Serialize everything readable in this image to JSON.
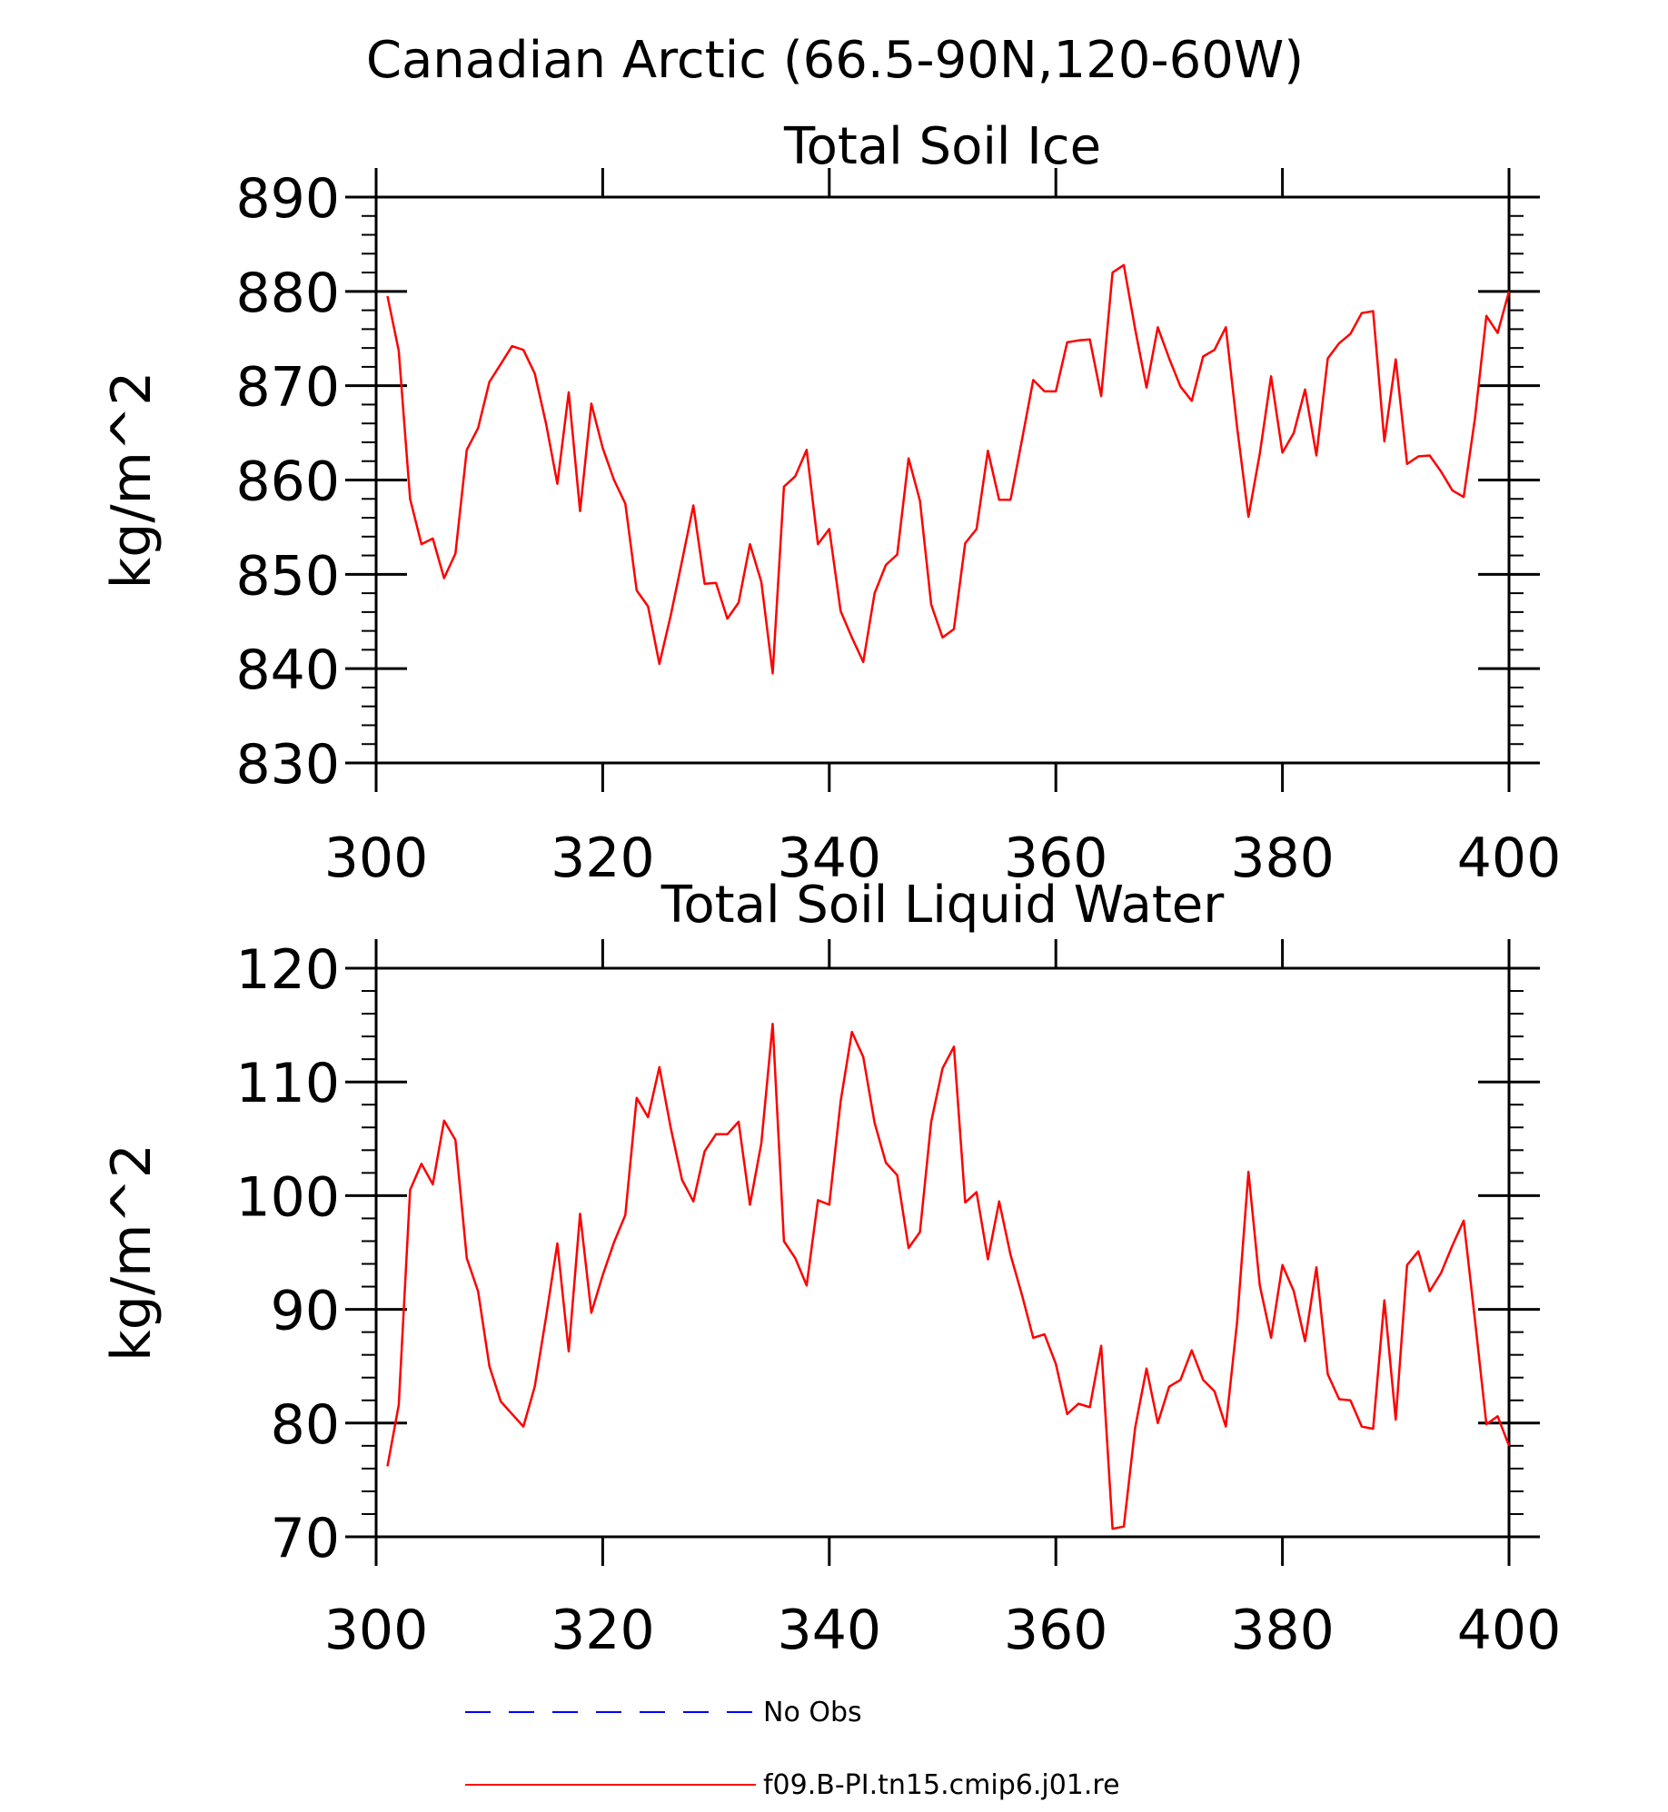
{
  "figure_title": "Canadian Arctic (66.5-90N,120-60W)",
  "legend": [
    {
      "label": "No Obs",
      "color": "#0000ff",
      "style": "dashed"
    },
    {
      "label": "f09.B-PI.tn15.cmip6.j01.re",
      "color": "#ff0000",
      "style": "solid"
    }
  ],
  "chart_data": [
    {
      "type": "line",
      "title": "Total Soil Ice",
      "xlabel": "",
      "ylabel": "kg/m^2",
      "xlim": [
        300,
        400
      ],
      "ylim": [
        830,
        890
      ],
      "xticks": [
        300,
        320,
        340,
        360,
        380,
        400
      ],
      "yticks": [
        830,
        840,
        850,
        860,
        870,
        880,
        890
      ],
      "series": [
        {
          "name": "f09.B-PI.tn15.cmip6.j01.re",
          "color": "#ff0000",
          "x": [
            301,
            302,
            303,
            304,
            305,
            306,
            307,
            308,
            309,
            310,
            311,
            312,
            313,
            314,
            315,
            316,
            317,
            318,
            319,
            320,
            321,
            322,
            323,
            324,
            325,
            326,
            327,
            328,
            329,
            330,
            331,
            332,
            333,
            334,
            335,
            336,
            337,
            338,
            339,
            340,
            341,
            342,
            343,
            344,
            345,
            346,
            347,
            348,
            349,
            350,
            351,
            352,
            353,
            354,
            355,
            356,
            357,
            358,
            359,
            360,
            361,
            362,
            363,
            364,
            365,
            366,
            367,
            368,
            369,
            370,
            371,
            372,
            373,
            374,
            375,
            376,
            377,
            378,
            379,
            380,
            381,
            382,
            383,
            384,
            385,
            386,
            387,
            388,
            389,
            390,
            391,
            392,
            393,
            394,
            395,
            396,
            397,
            398,
            399,
            400
          ],
          "values": [
            879.5,
            873.7,
            858.0,
            853.2,
            853.8,
            849.6,
            852.2,
            863.2,
            865.5,
            870.4,
            872.3,
            874.2,
            873.8,
            871.3,
            866.0,
            859.6,
            869.3,
            856.7,
            868.1,
            863.4,
            860.0,
            857.5,
            848.3,
            846.6,
            840.5,
            845.6,
            851.4,
            857.3,
            849.0,
            849.1,
            845.3,
            847.0,
            853.2,
            849.2,
            839.5,
            859.3,
            860.4,
            863.2,
            853.2,
            854.8,
            846.1,
            843.3,
            840.7,
            848.0,
            851.0,
            852.1,
            862.3,
            857.8,
            846.8,
            843.3,
            844.2,
            853.3,
            854.8,
            863.1,
            857.9,
            857.9,
            864.2,
            870.6,
            869.4,
            869.4,
            874.6,
            874.8,
            874.9,
            868.9,
            882.0,
            882.8,
            876.0,
            869.8,
            876.2,
            872.9,
            869.9,
            868.4,
            873.1,
            873.8,
            876.2,
            865.6,
            856.1,
            862.8,
            871.0,
            862.9,
            865.0,
            869.6,
            862.6,
            872.9,
            874.5,
            875.5,
            877.7,
            877.9,
            864.1,
            872.8,
            861.7,
            862.5,
            862.6,
            860.9,
            858.9,
            858.2,
            866.6,
            877.4,
            875.6,
            880.0
          ]
        }
      ]
    },
    {
      "type": "line",
      "title": "Total Soil Liquid Water",
      "xlabel": "",
      "ylabel": "kg/m^2",
      "xlim": [
        300,
        400
      ],
      "ylim": [
        70,
        120
      ],
      "xticks": [
        300,
        320,
        340,
        360,
        380,
        400
      ],
      "yticks": [
        70,
        80,
        90,
        100,
        110,
        120
      ],
      "series": [
        {
          "name": "f09.B-PI.tn15.cmip6.j01.re",
          "color": "#ff0000",
          "x": [
            301,
            302,
            303,
            304,
            305,
            306,
            307,
            308,
            309,
            310,
            311,
            312,
            313,
            314,
            315,
            316,
            317,
            318,
            319,
            320,
            321,
            322,
            323,
            324,
            325,
            326,
            327,
            328,
            329,
            330,
            331,
            332,
            333,
            334,
            335,
            336,
            337,
            338,
            339,
            340,
            341,
            342,
            343,
            344,
            345,
            346,
            347,
            348,
            349,
            350,
            351,
            352,
            353,
            354,
            355,
            356,
            357,
            358,
            359,
            360,
            361,
            362,
            363,
            364,
            365,
            366,
            367,
            368,
            369,
            370,
            371,
            372,
            373,
            374,
            375,
            376,
            377,
            378,
            379,
            380,
            381,
            382,
            383,
            384,
            385,
            386,
            387,
            388,
            389,
            390,
            391,
            392,
            393,
            394,
            395,
            396,
            397,
            398,
            399,
            400
          ],
          "values": [
            76.2,
            81.6,
            100.5,
            102.8,
            101.0,
            106.6,
            104.9,
            94.5,
            91.6,
            85.0,
            81.9,
            80.8,
            79.7,
            83.2,
            89.3,
            95.8,
            86.3,
            98.4,
            89.7,
            93.0,
            95.9,
            98.3,
            108.6,
            106.9,
            111.3,
            106.0,
            101.4,
            99.5,
            103.9,
            105.4,
            105.4,
            106.5,
            99.2,
            104.6,
            115.1,
            96.0,
            94.5,
            92.1,
            99.6,
            99.2,
            108.3,
            114.4,
            112.2,
            106.4,
            102.9,
            101.8,
            95.4,
            96.8,
            106.5,
            111.2,
            113.1,
            99.4,
            100.3,
            94.4,
            99.5,
            94.8,
            91.3,
            87.5,
            87.8,
            85.2,
            80.8,
            81.7,
            81.4,
            86.8,
            70.7,
            70.9,
            79.6,
            84.8,
            80.0,
            83.2,
            83.8,
            86.4,
            83.8,
            82.8,
            79.7,
            88.9,
            102.1,
            92.1,
            87.5,
            93.9,
            91.6,
            87.2,
            93.7,
            84.3,
            82.1,
            82.0,
            79.7,
            79.5,
            90.8,
            80.3,
            93.9,
            95.1,
            91.6,
            93.2,
            95.6,
            97.8,
            89.0,
            79.9,
            80.6,
            78.0
          ]
        }
      ]
    }
  ]
}
